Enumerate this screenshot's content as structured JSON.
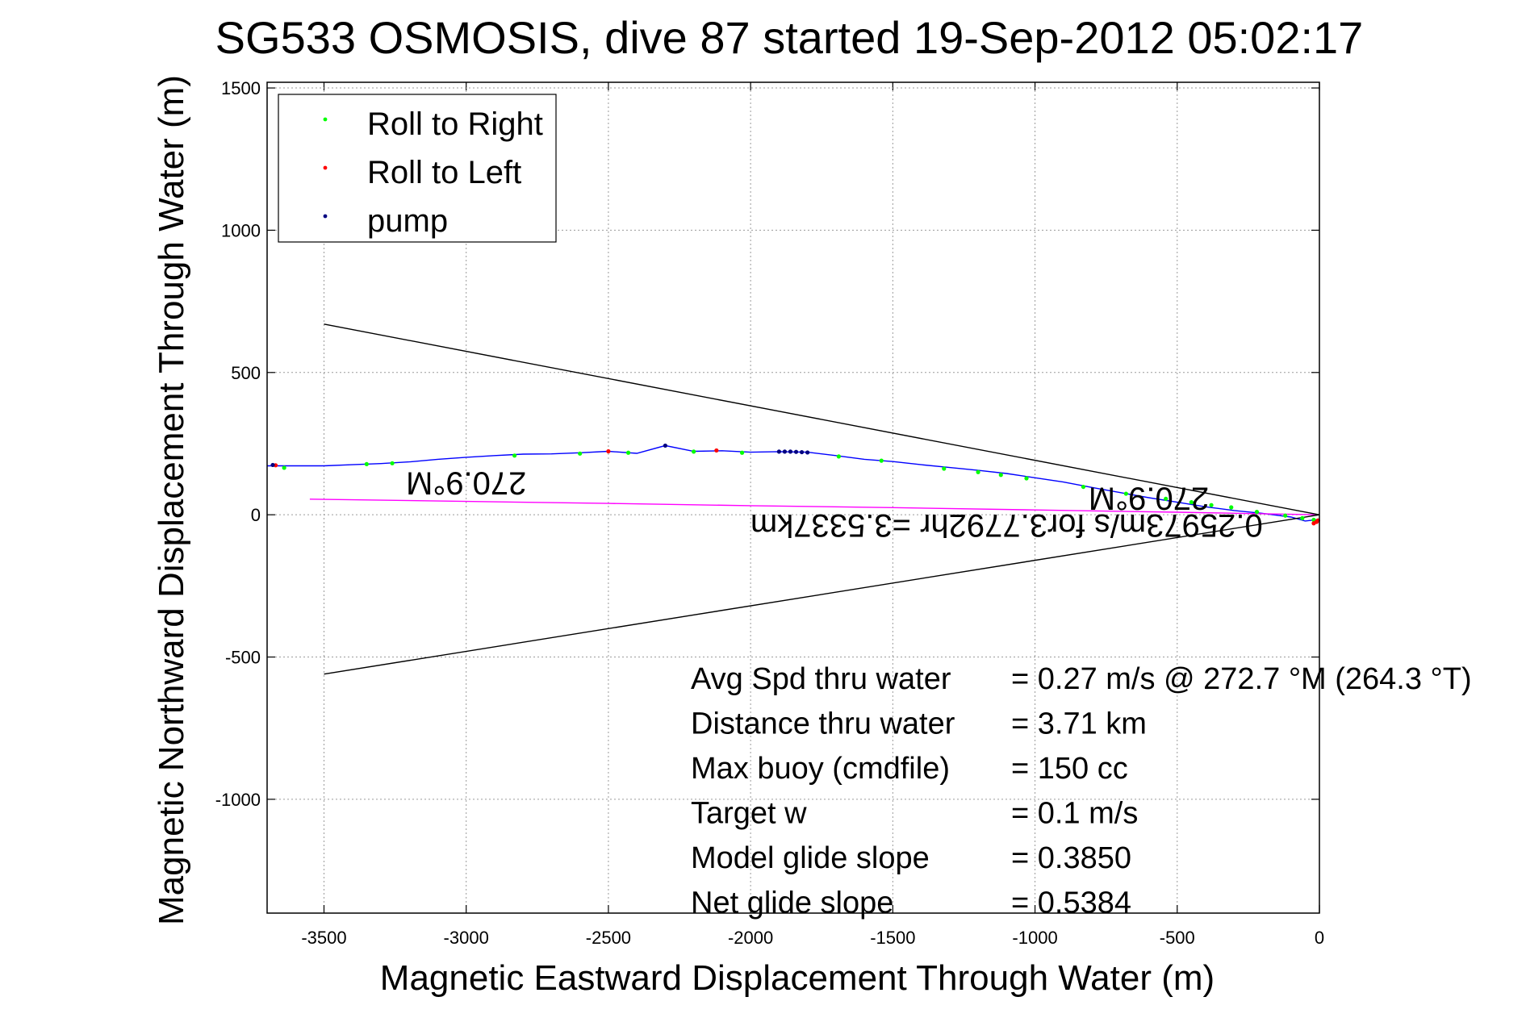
{
  "chart_data": {
    "type": "line",
    "title": "SG533 OSMOSIS, dive 87 started 19-Sep-2012 05:02:17",
    "xlabel": "Magnetic Eastward Displacement Through Water (m)",
    "ylabel": "Magnetic Northward Displacement Through Water (m)",
    "xlim": [
      -3700,
      0
    ],
    "ylim": [
      -1400,
      1520
    ],
    "xticks": [
      -3500,
      -3000,
      -2500,
      -2000,
      -1500,
      -1000,
      -500,
      0
    ],
    "yticks": [
      -1000,
      -500,
      0,
      500,
      1000,
      1500
    ],
    "grid": true,
    "legend_position": "top-left",
    "legend": [
      {
        "label": "Roll to Right",
        "color": "#00ff00"
      },
      {
        "label": "Roll to Left",
        "color": "#ff0000"
      },
      {
        "label": "pump",
        "color": "#000080"
      }
    ],
    "series": [
      {
        "color": "#0000ff",
        "x": [
          -3700,
          -3650,
          -3600,
          -3500,
          -3400,
          -3300,
          -3200,
          -3100,
          -3000,
          -2900,
          -2800,
          -2700,
          -2600,
          -2500,
          -2400,
          -2300,
          -2200,
          -2100,
          -2000,
          -1900,
          -1800,
          -1700,
          -1600,
          -1500,
          -1400,
          -1300,
          -1200,
          -1100,
          -1000,
          -900,
          -800,
          -700,
          -600,
          -500,
          -400,
          -300,
          -200,
          -100,
          -50,
          0
        ],
        "y": [
          172,
          172,
          172,
          172,
          176,
          180,
          186,
          195,
          202,
          208,
          213,
          214,
          218,
          223,
          216,
          243,
          223,
          225,
          220,
          222,
          220,
          208,
          195,
          187,
          176,
          166,
          156,
          145,
          130,
          115,
          96,
          78,
          60,
          44,
          28,
          15,
          5,
          -8,
          -22,
          -16
        ]
      },
      {
        "color": "#ff00ff",
        "x": [
          -3550,
          -3000,
          -2500,
          -2000,
          -1500,
          -1000,
          -500,
          0
        ],
        "y": [
          55,
          47,
          40,
          32,
          25,
          17,
          9,
          0
        ]
      },
      {
        "color": "#000000",
        "x": [
          -3500,
          0
        ],
        "y": [
          670,
          0
        ]
      },
      {
        "color": "#000000",
        "x": [
          -3500,
          0
        ],
        "y": [
          -560,
          0
        ]
      }
    ],
    "markers": {
      "roll_right": {
        "color": "#00ff00",
        "x": [
          -3640,
          -3350,
          -3260,
          -2830,
          -2600,
          -2430,
          -2200,
          -2030,
          -1690,
          -1540,
          -1320,
          -1200,
          -1120,
          -1030,
          -830,
          -680,
          -540,
          -450,
          -380,
          -310,
          -220,
          -120,
          -60,
          -20
        ],
        "y": [
          165,
          178,
          181,
          208,
          215,
          218,
          222,
          218,
          205,
          190,
          162,
          150,
          140,
          128,
          98,
          74,
          56,
          44,
          34,
          26,
          10,
          -3,
          -12,
          -18
        ]
      },
      "roll_left": {
        "color": "#ff0000",
        "x": [
          -3670,
          -2500,
          -2120,
          -20,
          -10,
          -5
        ],
        "y": [
          174,
          223,
          226,
          -30,
          -25,
          -20
        ]
      },
      "pump": {
        "color": "#000080",
        "x": [
          -3680,
          -2300,
          -1900,
          -1880,
          -1860,
          -1840,
          -1820,
          -1800
        ],
        "y": [
          175,
          243,
          222,
          222,
          222,
          221,
          220,
          219
        ]
      }
    },
    "annotations": [
      {
        "text": "270.9°M",
        "x": -3000,
        "y": 150,
        "rotated": 180
      },
      {
        "text": "270.9°M",
        "x": -600,
        "y": 95,
        "rotated": 180
      },
      {
        "text": "0.25973m/s for3.7792hr =3.5337km",
        "x": -1100,
        "y": 0,
        "rotated": 180
      }
    ],
    "stats": [
      {
        "label": "Avg Spd thru water",
        "value": "=  0.27 m/s @ 272.7 °M (264.3 °T)"
      },
      {
        "label": "Distance thru water",
        "value": "=  3.71 km"
      },
      {
        "label": "Max buoy (cmdfile)",
        "value": "= 150 cc"
      },
      {
        "label": "Target w",
        "value": "= 0.1 m/s"
      },
      {
        "label": "Model glide slope",
        "value": "= 0.3850"
      },
      {
        "label": "Net glide slope",
        "value": "= 0.5384"
      }
    ]
  }
}
